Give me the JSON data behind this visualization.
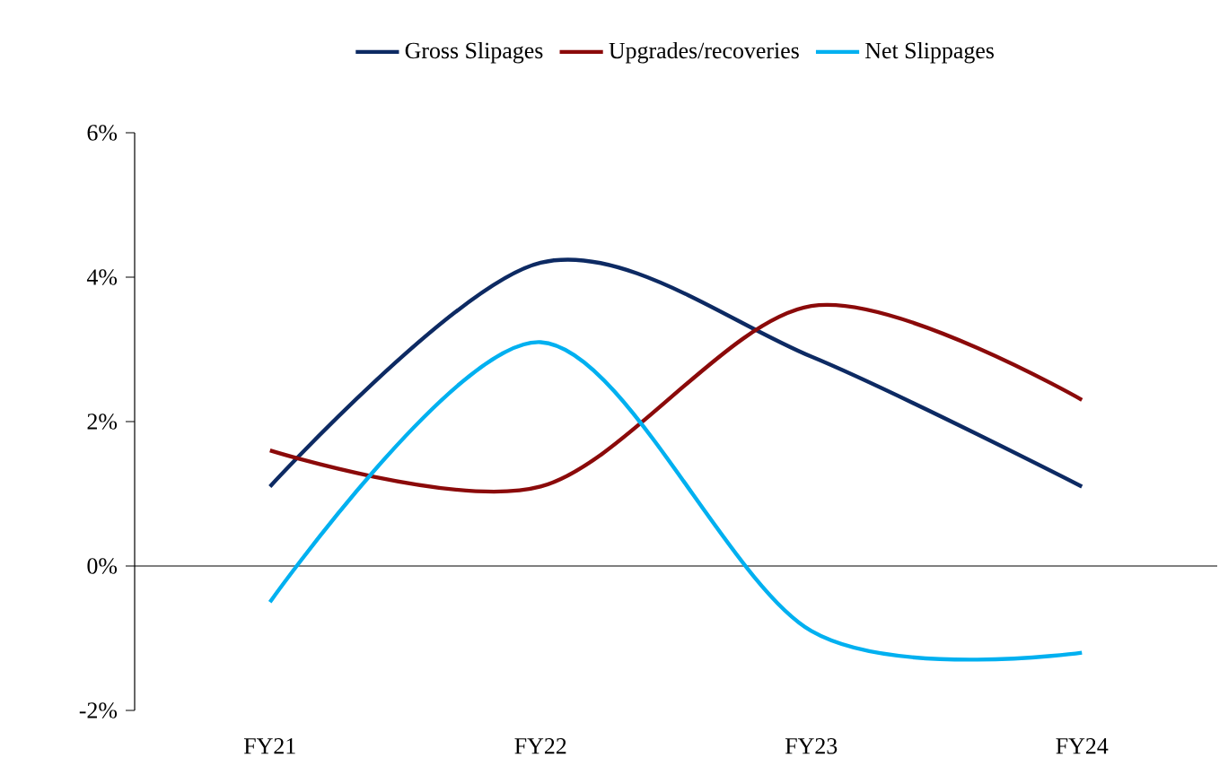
{
  "chart_data": {
    "type": "line",
    "categories": [
      "FY21",
      "FY22",
      "FY23",
      "FY24"
    ],
    "series": [
      {
        "name": "Gross Slipages",
        "color": "#0d2a63",
        "values": [
          1.1,
          4.2,
          2.9,
          1.1
        ]
      },
      {
        "name": "Upgrades/recoveries",
        "color": "#8b0a0a",
        "values": [
          1.6,
          1.1,
          3.6,
          2.3
        ]
      },
      {
        "name": "Net Slippages",
        "color": "#00b0f0",
        "values": [
          -0.5,
          3.1,
          -0.9,
          -1.2
        ]
      }
    ],
    "ylim": [
      -2,
      6
    ],
    "yticks": [
      {
        "value": -2,
        "label": "-2%"
      },
      {
        "value": 0,
        "label": "0%"
      },
      {
        "value": 2,
        "label": "2%"
      },
      {
        "value": 4,
        "label": "4%"
      },
      {
        "value": 6,
        "label": "6%"
      }
    ],
    "ref_lines": [
      {
        "axis": "y",
        "value": 0,
        "color": "#000000"
      }
    ],
    "grid": false,
    "legend": "top",
    "marker": "none",
    "line_style": "solid"
  }
}
